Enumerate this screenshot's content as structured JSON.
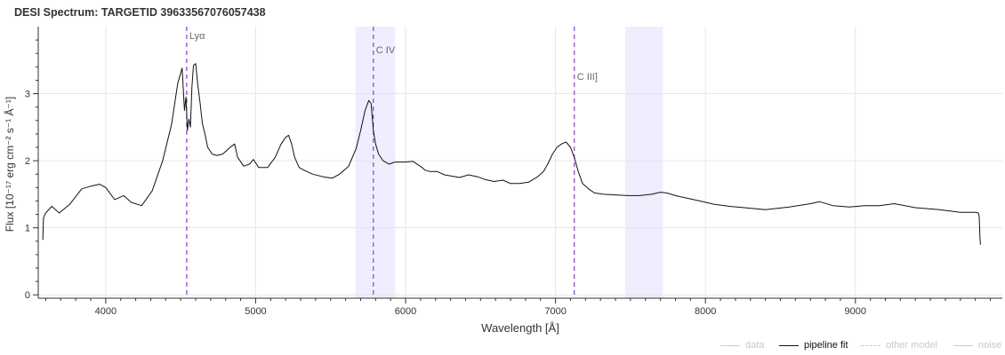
{
  "title": "DESI Spectrum: TARGETID 39633567076057438",
  "colors": {
    "fit": "#111111",
    "line_marker": "#8a3dc9",
    "band": "#eeeeff",
    "grid": "#e6e6e6",
    "muted": "#cccccc"
  },
  "legend": [
    {
      "label": "data",
      "style": "solid",
      "muted": true
    },
    {
      "label": "pipeline fit",
      "style": "solid",
      "muted": false
    },
    {
      "label": "other model",
      "style": "dashed",
      "muted": true
    },
    {
      "label": "noise",
      "style": "solid",
      "muted": true
    }
  ],
  "chart_data": {
    "type": "line",
    "title": "DESI Spectrum: TARGETID 39633567076057438",
    "xlabel": "Wavelength [Å]",
    "ylabel": "Flux [10⁻¹⁷ erg cm⁻² s⁻¹ Å⁻¹]",
    "xlim": [
      3550,
      9980
    ],
    "ylim": [
      -0.05,
      4.0
    ],
    "xticks": [
      4000,
      5000,
      6000,
      7000,
      8000,
      9000
    ],
    "yticks": [
      0,
      1,
      2,
      3
    ],
    "grid": true,
    "legend_position": "bottom-right",
    "emission_lines": [
      {
        "label": "Lyα",
        "x": 4540
      },
      {
        "label": "C IV",
        "x": 5785
      },
      {
        "label": "C III]",
        "x": 7125
      }
    ],
    "shaded_bands": [
      [
        5665,
        5930
      ],
      [
        7465,
        7715
      ]
    ],
    "series": [
      {
        "name": "pipeline fit",
        "x": [
          3580,
          3585,
          3600,
          3640,
          3690,
          3760,
          3840,
          3900,
          3960,
          4000,
          4060,
          4120,
          4170,
          4240,
          4310,
          4380,
          4440,
          4480,
          4510,
          4525,
          4535,
          4545,
          4555,
          4565,
          4575,
          4585,
          4600,
          4615,
          4630,
          4645,
          4660,
          4680,
          4710,
          4740,
          4780,
          4830,
          4860,
          4880,
          4920,
          4960,
          4985,
          5020,
          5080,
          5130,
          5170,
          5200,
          5220,
          5240,
          5260,
          5290,
          5330,
          5380,
          5450,
          5510,
          5560,
          5620,
          5670,
          5700,
          5730,
          5755,
          5770,
          5785,
          5800,
          5820,
          5850,
          5890,
          5930,
          5990,
          6050,
          6110,
          6130,
          6160,
          6210,
          6260,
          6310,
          6360,
          6420,
          6480,
          6530,
          6590,
          6650,
          6700,
          6760,
          6820,
          6880,
          6920,
          6950,
          6980,
          7010,
          7040,
          7070,
          7100,
          7125,
          7150,
          7180,
          7220,
          7260,
          7320,
          7400,
          7480,
          7560,
          7640,
          7700,
          7740,
          7800,
          7880,
          7960,
          8060,
          8160,
          8260,
          8400,
          8560,
          8700,
          8760,
          8850,
          8960,
          9060,
          9160,
          9260,
          9400,
          9560,
          9700,
          9800,
          9820,
          9826,
          9830,
          9834
        ],
        "y": [
          0.82,
          1.15,
          1.22,
          1.32,
          1.22,
          1.35,
          1.58,
          1.62,
          1.65,
          1.6,
          1.42,
          1.48,
          1.38,
          1.33,
          1.55,
          2.0,
          2.55,
          3.15,
          3.38,
          2.75,
          2.95,
          2.45,
          2.62,
          2.5,
          3.1,
          3.42,
          3.45,
          3.12,
          2.85,
          2.55,
          2.42,
          2.2,
          2.1,
          2.08,
          2.1,
          2.2,
          2.25,
          2.05,
          1.92,
          1.95,
          2.02,
          1.9,
          1.9,
          2.05,
          2.25,
          2.35,
          2.38,
          2.25,
          2.05,
          1.9,
          1.85,
          1.8,
          1.76,
          1.74,
          1.8,
          1.92,
          2.18,
          2.45,
          2.75,
          2.9,
          2.85,
          2.45,
          2.25,
          2.1,
          2.0,
          1.95,
          1.98,
          1.98,
          1.99,
          1.9,
          1.86,
          1.84,
          1.84,
          1.79,
          1.77,
          1.75,
          1.79,
          1.76,
          1.72,
          1.69,
          1.71,
          1.66,
          1.66,
          1.68,
          1.76,
          1.84,
          1.96,
          2.1,
          2.2,
          2.25,
          2.28,
          2.2,
          2.05,
          1.85,
          1.66,
          1.58,
          1.52,
          1.5,
          1.49,
          1.48,
          1.48,
          1.5,
          1.53,
          1.52,
          1.48,
          1.44,
          1.4,
          1.35,
          1.32,
          1.3,
          1.27,
          1.31,
          1.36,
          1.39,
          1.33,
          1.31,
          1.33,
          1.33,
          1.36,
          1.3,
          1.27,
          1.23,
          1.23,
          1.22,
          1.17,
          0.9,
          0.75
        ]
      }
    ]
  }
}
